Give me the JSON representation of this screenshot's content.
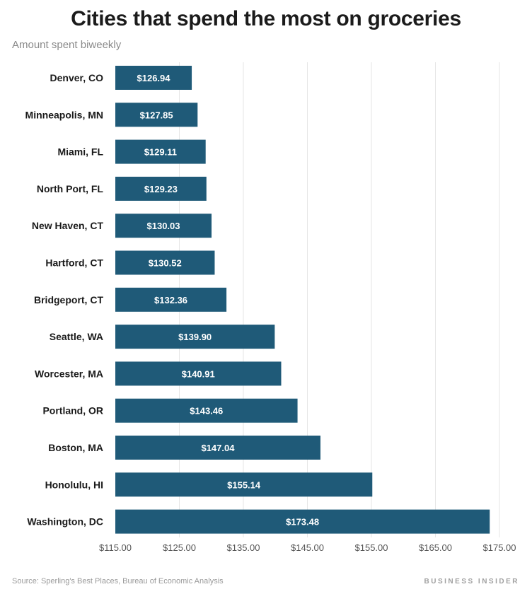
{
  "title": "Cities that spend the most on groceries",
  "subtitle": "Amount spent biweekly",
  "source": "Source: Sperling's Best Places, Bureau of Economic Analysis",
  "brand": "BUSINESS INSIDER",
  "colors": {
    "bar": "#1f5a78",
    "bar_label": "#ffffff",
    "grid": "#e6e6e6",
    "text": "#1a1a1a",
    "tick": "#555555"
  },
  "chart_data": {
    "type": "bar",
    "orientation": "horizontal",
    "categories": [
      "Denver, CO",
      "Minneapolis, MN",
      "Miami, FL",
      "North Port, FL",
      "New Haven, CT",
      "Hartford, CT",
      "Bridgeport, CT",
      "Seattle, WA",
      "Worcester, MA",
      "Portland, OR",
      "Boston, MA",
      "Honolulu, HI",
      "Washington, DC"
    ],
    "values": [
      126.94,
      127.85,
      129.11,
      129.23,
      130.03,
      130.52,
      132.36,
      139.9,
      140.91,
      143.46,
      147.04,
      155.14,
      173.48
    ],
    "value_labels": [
      "$126.94",
      "$127.85",
      "$129.11",
      "$129.23",
      "$130.03",
      "$130.52",
      "$132.36",
      "$139.90",
      "$140.91",
      "$143.46",
      "$147.04",
      "$155.14",
      "$173.48"
    ],
    "title": "Cities that spend the most on groceries",
    "subtitle": "Amount spent biweekly",
    "xlabel": "",
    "ylabel": "",
    "xlim": [
      115,
      175
    ],
    "xticks": [
      115,
      125,
      135,
      145,
      155,
      165,
      175
    ],
    "xtick_labels": [
      "$115.00",
      "$125.00",
      "$135.00",
      "$145.00",
      "$155.00",
      "$165.00",
      "$175.00"
    ],
    "grid": true,
    "legend": "none"
  }
}
